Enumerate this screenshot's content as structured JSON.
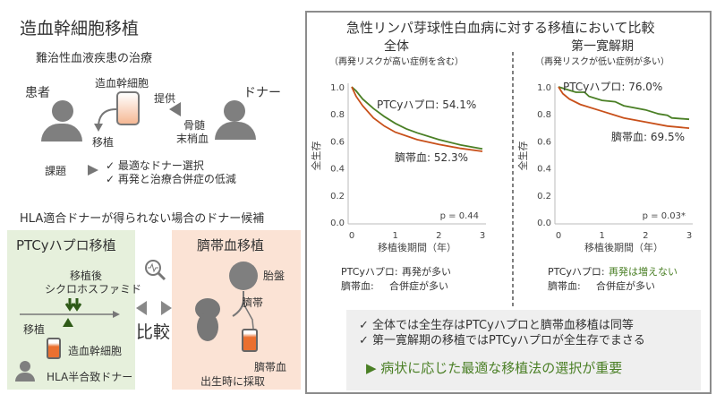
{
  "left": {
    "title": "造血幹細胞移植",
    "subtitle": "難治性血液疾患の治療",
    "patient": "患者",
    "donor": "ドナー",
    "cell": "造血幹細胞",
    "provide": "提供",
    "source_line1": "骨髄",
    "source_line2": "末梢血",
    "transplant": "移植",
    "issue_label": "課題",
    "issues": [
      "✓ 最適なドナー選択",
      "✓ 再発と治療合併症の低減"
    ],
    "candidates_title": "HLA適合ドナーが得られない場合のドナー候補",
    "ptcy": {
      "title": "PTCyハプロ移植",
      "drug_line1": "移植後",
      "drug_line2": "シクロホスファミド",
      "transplant": "移植",
      "cell": "造血幹細胞",
      "donor": "HLA半合致ドナー"
    },
    "compare": "比較",
    "cord": {
      "title": "臍帯血移植",
      "placenta": "胎盤",
      "umbilical": "臍帯",
      "cord_blood": "臍帯血",
      "collect": "出生時に採取"
    }
  },
  "right": {
    "title": "急性リンパ芽球性白血病に対する移植において比較",
    "notes": [
      "✓ 全体では全生存はPTCyハプロと臍帯血移植は同等",
      "✓ 第一寛解期の移植ではPTCyハプロが全生存でまさる"
    ],
    "conclusion": "▶ 病状に応じた最適な移植法の選択が重要"
  },
  "colors": {
    "ptcy": "#4a7f25",
    "cord": "#c8501a",
    "green_bg": "#e6f0dc",
    "orange_bg": "#fbe3d5",
    "note_bg": "#efefef"
  },
  "chart_data": [
    {
      "type": "line",
      "title": "全体",
      "subtitle": "（再発リスクが高い症例を含む）",
      "xlabel": "移植後期間（年）",
      "ylabel": "全生存",
      "xlim": [
        0,
        3
      ],
      "ylim": [
        0,
        1
      ],
      "xticks": [
        "0",
        "1",
        "2",
        "3"
      ],
      "yticks": [
        "0.0",
        "0.2",
        "0.4",
        "0.6",
        "0.8",
        "1.0"
      ],
      "grid": false,
      "series": [
        {
          "name": "PTCyハプロ",
          "label": "PTCyハプロ: 54.1%",
          "color": "#4a7f25",
          "points": [
            [
              0,
              1
            ],
            [
              0.1,
              0.97
            ],
            [
              0.25,
              0.91
            ],
            [
              0.5,
              0.84
            ],
            [
              0.75,
              0.78
            ],
            [
              1,
              0.73
            ],
            [
              1.25,
              0.69
            ],
            [
              1.5,
              0.66
            ],
            [
              2,
              0.61
            ],
            [
              2.5,
              0.57
            ],
            [
              3,
              0.541
            ]
          ]
        },
        {
          "name": "臍帯血",
          "label": "臍帯血: 52.3%",
          "color": "#c8501a",
          "points": [
            [
              0,
              1
            ],
            [
              0.1,
              0.93
            ],
            [
              0.25,
              0.86
            ],
            [
              0.5,
              0.77
            ],
            [
              0.75,
              0.71
            ],
            [
              1,
              0.665
            ],
            [
              1.5,
              0.61
            ],
            [
              2,
              0.575
            ],
            [
              2.5,
              0.545
            ],
            [
              3,
              0.523
            ]
          ]
        }
      ],
      "pvalue": "p = 0.44",
      "footer": [
        [
          "PTCyハプロ:",
          "再発が多い"
        ],
        [
          "臍帯血:",
          "合併症が多い"
        ]
      ]
    },
    {
      "type": "line",
      "title": "第一寛解期",
      "subtitle": "（再発リスクが低い症例が多い）",
      "xlabel": "移植後期間（年）",
      "ylabel": "全生存",
      "xlim": [
        0,
        3
      ],
      "ylim": [
        0,
        1
      ],
      "xticks": [
        "0",
        "1",
        "2",
        "3"
      ],
      "yticks": [
        "0.0",
        "0.2",
        "0.4",
        "0.6",
        "0.8",
        "1.0"
      ],
      "grid": false,
      "series": [
        {
          "name": "PTCyハプロ",
          "label": "PTCyハプロ: 76.0%",
          "color": "#4a7f25",
          "points": [
            [
              0,
              1
            ],
            [
              0.2,
              0.98
            ],
            [
              0.4,
              0.96
            ],
            [
              0.6,
              0.96
            ],
            [
              0.7,
              0.93
            ],
            [
              1,
              0.9
            ],
            [
              1.3,
              0.89
            ],
            [
              1.5,
              0.86
            ],
            [
              2,
              0.83
            ],
            [
              2.3,
              0.8
            ],
            [
              2.5,
              0.79
            ],
            [
              2.6,
              0.77
            ],
            [
              3,
              0.76
            ]
          ]
        },
        {
          "name": "臍帯血",
          "label": "臍帯血: 69.5%",
          "color": "#c8501a",
          "points": [
            [
              0,
              1
            ],
            [
              0.1,
              0.95
            ],
            [
              0.25,
              0.91
            ],
            [
              0.5,
              0.87
            ],
            [
              1,
              0.82
            ],
            [
              1.5,
              0.77
            ],
            [
              2,
              0.74
            ],
            [
              2.5,
              0.71
            ],
            [
              3,
              0.695
            ]
          ]
        }
      ],
      "pvalue": "p = 0.03*",
      "footer": [
        [
          "PTCyハプロ:",
          "再発は増えない"
        ],
        [
          "臍帯血:",
          "合併症が多い"
        ]
      ]
    }
  ]
}
